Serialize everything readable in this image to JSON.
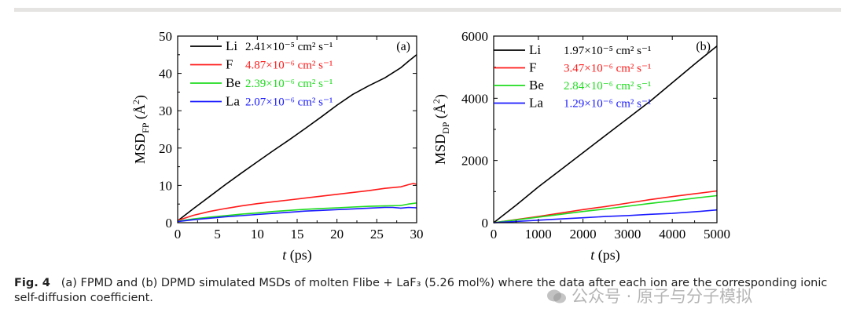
{
  "caption": {
    "label": "Fig. 4",
    "text": "(a) FPMD and (b) DPMD simulated MSDs of molten Flibe + LaF₃ (5.26 mol%) where the data after each ion are the corresponding ionic self-diffusion coefficient."
  },
  "watermark": {
    "text": "公众号 · 原子与分子模拟"
  },
  "chart_data": [
    {
      "type": "line",
      "panel": "(a)",
      "xlabel": "t (ps)",
      "ylabel": "MSD_FP (Å²)",
      "xlim": [
        0,
        30
      ],
      "ylim": [
        0,
        50
      ],
      "xticks": [
        0,
        5,
        10,
        15,
        20,
        25,
        30
      ],
      "yticks": [
        0,
        10,
        20,
        30,
        40,
        50
      ],
      "legend_position": "top-left",
      "series": [
        {
          "name": "Li",
          "coef": "2.41×10⁻⁵ cm² s⁻¹",
          "color": "#000000",
          "x": [
            0,
            2,
            4,
            6,
            8,
            10,
            12,
            14,
            16,
            18,
            20,
            22,
            24,
            26,
            28,
            29,
            30
          ],
          "y": [
            0.5,
            3.8,
            7.0,
            10.2,
            13.3,
            16.3,
            19.3,
            22.2,
            25.2,
            28.3,
            31.5,
            34.4,
            36.7,
            38.8,
            41.5,
            43.3,
            45.0
          ]
        },
        {
          "name": "F",
          "coef": "4.87×10⁻⁶ cm² s⁻¹",
          "color": "#ff1a1a",
          "x": [
            0,
            2,
            4,
            6,
            8,
            10,
            12,
            14,
            16,
            18,
            20,
            22,
            24,
            26,
            28,
            29,
            29.6,
            30
          ],
          "y": [
            0.6,
            2.0,
            3.0,
            3.8,
            4.5,
            5.1,
            5.6,
            6.1,
            6.6,
            7.1,
            7.6,
            8.1,
            8.6,
            9.2,
            9.6,
            10.2,
            10.5,
            10.3
          ]
        },
        {
          "name": "Be",
          "coef": "2.39×10⁻⁶ cm² s⁻¹",
          "color": "#1fdc1f",
          "x": [
            0,
            2,
            4,
            6,
            8,
            10,
            12,
            14,
            16,
            18,
            20,
            22,
            24,
            26,
            28,
            29,
            30
          ],
          "y": [
            0.4,
            1.0,
            1.5,
            1.9,
            2.3,
            2.6,
            3.0,
            3.3,
            3.6,
            3.8,
            4.0,
            4.2,
            4.4,
            4.5,
            4.6,
            5.0,
            5.3
          ]
        },
        {
          "name": "La",
          "coef": "2.07×10⁻⁶ cm² s⁻¹",
          "color": "#1a1aff",
          "x": [
            0,
            2,
            4,
            6,
            8,
            10,
            12,
            14,
            16,
            18,
            20,
            22,
            24,
            26,
            27,
            28,
            29,
            30
          ],
          "y": [
            0.3,
            0.8,
            1.2,
            1.6,
            1.9,
            2.2,
            2.5,
            2.8,
            3.1,
            3.3,
            3.5,
            3.7,
            3.9,
            4.1,
            4.1,
            3.9,
            4.1,
            4.0
          ]
        }
      ]
    },
    {
      "type": "line",
      "panel": "(b)",
      "xlabel": "t (ps)",
      "ylabel": "MSD_DP (Å²)",
      "xlim": [
        0,
        5000
      ],
      "ylim": [
        0,
        6000
      ],
      "xticks": [
        0,
        1000,
        2000,
        3000,
        4000,
        5000
      ],
      "yticks": [
        0,
        2000,
        4000,
        6000
      ],
      "legend_position": "top-left",
      "series": [
        {
          "name": "Li",
          "coef": "1.97×10⁻⁵ cm² s⁻¹",
          "color": "#000000",
          "x": [
            0,
            500,
            1000,
            1500,
            2000,
            2500,
            3000,
            3500,
            4000,
            4500,
            5000
          ],
          "y": [
            0,
            560,
            1150,
            1700,
            2250,
            2800,
            3350,
            3900,
            4500,
            5100,
            5680
          ]
        },
        {
          "name": "F",
          "coef": "3.47×10⁻⁶ cm² s⁻¹",
          "color": "#ff1a1a",
          "x": [
            0,
            500,
            1000,
            1500,
            2000,
            2500,
            3000,
            3500,
            4000,
            4500,
            5000
          ],
          "y": [
            0,
            100,
            200,
            310,
            420,
            520,
            630,
            740,
            840,
            930,
            1020
          ]
        },
        {
          "name": "Be",
          "coef": "2.84×10⁻⁶ cm² s⁻¹",
          "color": "#1fdc1f",
          "x": [
            0,
            500,
            1000,
            1500,
            2000,
            2500,
            3000,
            3500,
            4000,
            4500,
            5000
          ],
          "y": [
            0,
            90,
            180,
            270,
            360,
            440,
            530,
            620,
            700,
            790,
            870
          ]
        },
        {
          "name": "La",
          "coef": "1.29×10⁻⁶ cm² s⁻¹",
          "color": "#1a1aff",
          "x": [
            0,
            500,
            1000,
            1500,
            2000,
            2500,
            3000,
            3500,
            4000,
            4500,
            5000
          ],
          "y": [
            0,
            40,
            80,
            120,
            160,
            200,
            230,
            270,
            300,
            350,
            410
          ]
        }
      ]
    }
  ]
}
